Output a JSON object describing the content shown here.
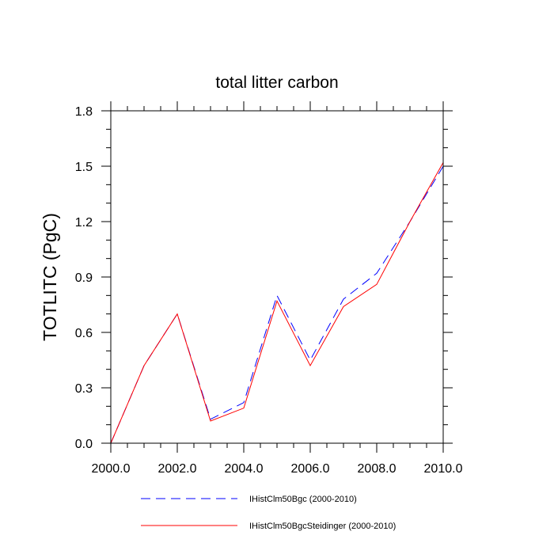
{
  "chart_data": {
    "type": "line",
    "title": "total litter carbon",
    "xlabel": "",
    "ylabel": "TOTLITC  (PgC)",
    "xlim": [
      2000,
      2010
    ],
    "ylim": [
      0,
      1.8
    ],
    "x_ticks": [
      "2000.0",
      "2002.0",
      "2004.0",
      "2006.0",
      "2008.0",
      "2010.0"
    ],
    "y_ticks": [
      "0.0",
      "0.3",
      "0.6",
      "0.9",
      "1.2",
      "1.5",
      "1.8"
    ],
    "x": [
      2000,
      2001,
      2002,
      2003,
      2004,
      2005,
      2006,
      2007,
      2008,
      2009,
      2010
    ],
    "series": [
      {
        "name": "IHistClm50Bgc (2000-2010)",
        "color": "#0000ff",
        "style": "dashed",
        "values": [
          0.0,
          0.42,
          0.7,
          0.13,
          0.22,
          0.8,
          0.45,
          0.78,
          0.92,
          1.2,
          1.5
        ]
      },
      {
        "name": "IHistClm50BgcSteidinger (2000-2010)",
        "color": "#ff0000",
        "style": "solid",
        "values": [
          0.0,
          0.42,
          0.7,
          0.12,
          0.19,
          0.77,
          0.42,
          0.74,
          0.86,
          1.2,
          1.52
        ]
      }
    ],
    "grid": false,
    "legend_position": "bottom"
  }
}
